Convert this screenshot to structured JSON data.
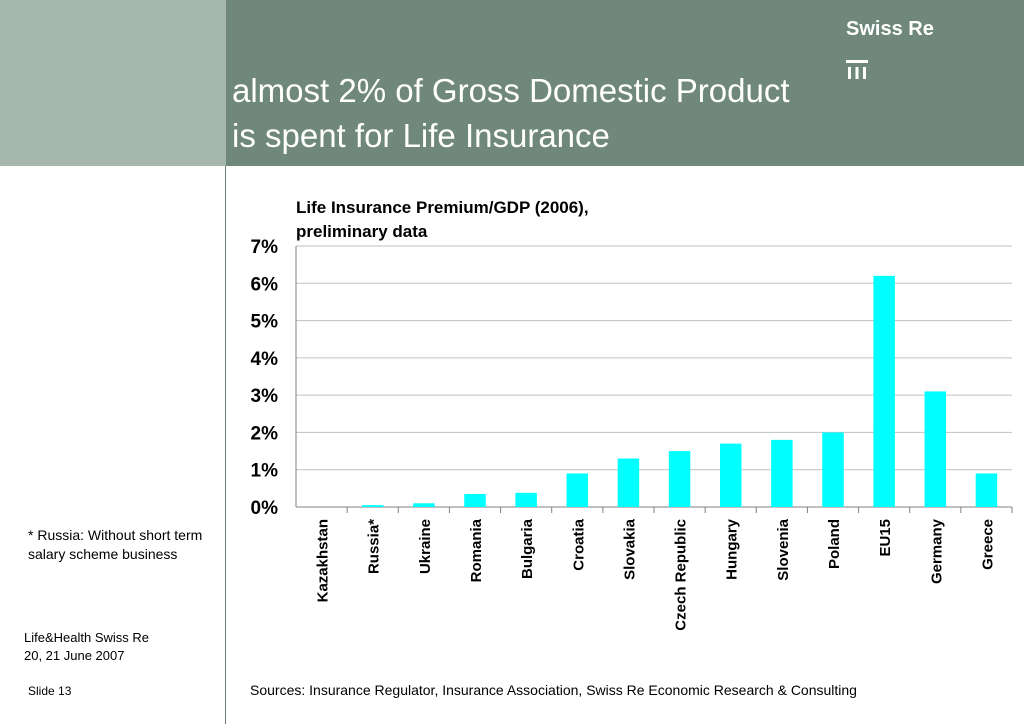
{
  "header": {
    "title_line1": "almost 2% of Gross Domestic Product",
    "title_line2": "is spent for Life Insurance",
    "brand": "Swiss Re"
  },
  "footnote": "* Russia: Without short term salary scheme business",
  "event": {
    "line1": "Life&Health Swiss Re",
    "line2": "20, 21 June 2007"
  },
  "slide": "Slide 13",
  "sources": "Sources: Insurance Regulator, Insurance Association, Swiss Re Economic Research & Consulting",
  "colors": {
    "header_main": "#70887c",
    "header_left": "#a6b7ae",
    "bar": "#00ffff",
    "grid": "#c0c0c0"
  },
  "chart_data": {
    "type": "bar",
    "title_line1": "Life Insurance Premium/GDP (2006),",
    "title_line2": "preliminary data",
    "categories": [
      "Kazakhstan",
      "Russia*",
      "Ukraine",
      "Romania",
      "Bulgaria",
      "Croatia",
      "Slovakia",
      "Czech Republic",
      "Hungary",
      "Slovenia",
      "Poland",
      "EU15",
      "Germany",
      "Greece"
    ],
    "values": [
      0.0,
      0.05,
      0.1,
      0.35,
      0.38,
      0.9,
      1.3,
      1.5,
      1.7,
      1.8,
      2.0,
      6.2,
      3.1,
      0.9
    ],
    "ylim": [
      0,
      7
    ],
    "yticks": [
      "0%",
      "1%",
      "2%",
      "3%",
      "4%",
      "5%",
      "6%",
      "7%"
    ],
    "grid": true
  }
}
